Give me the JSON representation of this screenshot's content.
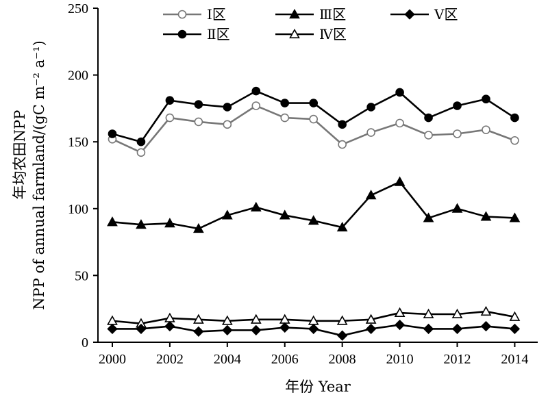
{
  "chart_data": {
    "type": "line",
    "xlabel": "年份 Year",
    "ylabel_line1": "年均农田NPP",
    "ylabel_line2": "NPP of annual farmland/(gC m⁻² a⁻¹)",
    "xlim": [
      1999.5,
      2014.8
    ],
    "ylim": [
      0,
      250
    ],
    "x_ticks": [
      2000,
      2002,
      2004,
      2006,
      2008,
      2010,
      2012,
      2014
    ],
    "y_ticks": [
      0,
      50,
      100,
      150,
      200,
      250
    ],
    "grid": false,
    "legend_position": "top",
    "x": [
      2000,
      2001,
      2002,
      2003,
      2004,
      2005,
      2006,
      2007,
      2008,
      2009,
      2010,
      2011,
      2012,
      2013,
      2014
    ],
    "series": [
      {
        "name": "Ⅰ区",
        "marker": "circle",
        "filled": false,
        "color": "#777777",
        "values": [
          152,
          142,
          168,
          165,
          163,
          177,
          168,
          167,
          148,
          157,
          164,
          155,
          156,
          159,
          151
        ]
      },
      {
        "name": "Ⅱ区",
        "marker": "circle",
        "filled": true,
        "color": "#000000",
        "values": [
          156,
          150,
          181,
          178,
          176,
          188,
          179,
          179,
          163,
          176,
          187,
          168,
          177,
          182,
          168
        ]
      },
      {
        "name": "Ⅲ区",
        "marker": "triangle",
        "filled": true,
        "color": "#000000",
        "values": [
          90,
          88,
          89,
          85,
          95,
          101,
          95,
          91,
          86,
          110,
          120,
          93,
          100,
          94,
          93
        ]
      },
      {
        "name": "Ⅳ区",
        "marker": "triangle",
        "filled": false,
        "color": "#000000",
        "values": [
          16,
          14,
          18,
          17,
          16,
          17,
          17,
          16,
          16,
          17,
          22,
          21,
          21,
          23,
          19
        ]
      },
      {
        "name": "Ⅴ区",
        "marker": "diamond",
        "filled": true,
        "color": "#000000",
        "values": [
          10,
          10,
          12,
          8,
          9,
          9,
          11,
          10,
          5,
          10,
          13,
          10,
          10,
          12,
          10
        ]
      }
    ]
  }
}
